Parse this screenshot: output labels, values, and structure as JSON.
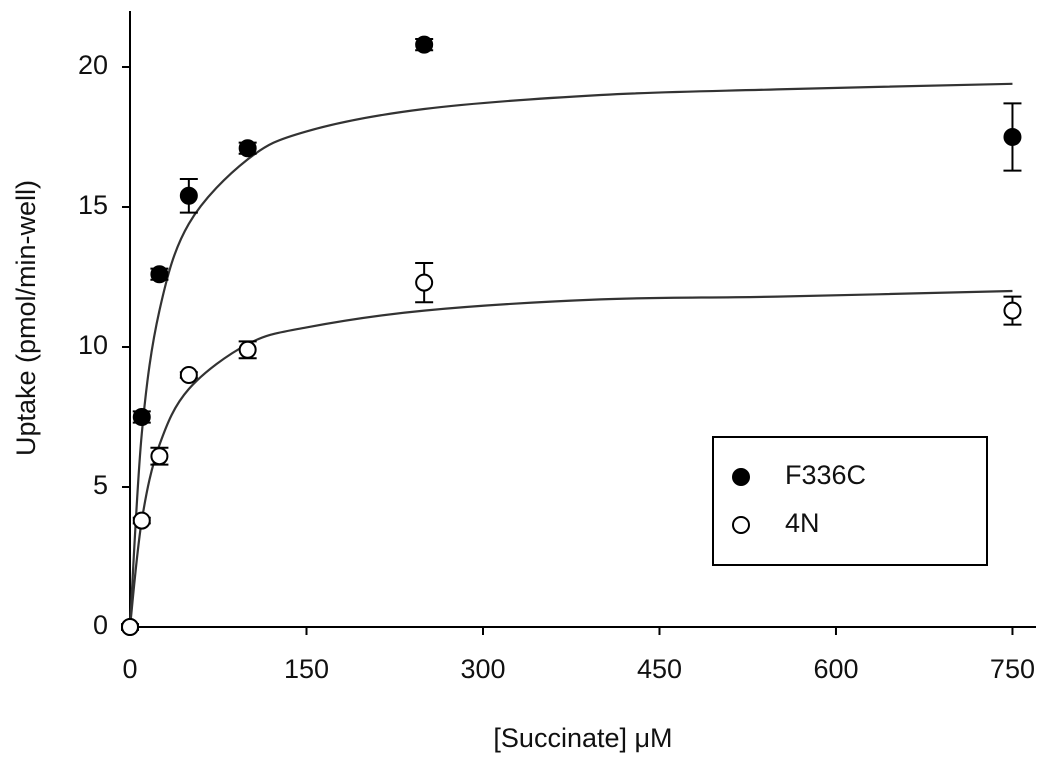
{
  "chart_data": {
    "type": "scatter",
    "x_label": "[Succinate] μM",
    "y_label": "Uptake (pmol/min-well)",
    "xlim": [
      0,
      770
    ],
    "xticks": [
      0,
      150,
      300,
      450,
      600,
      750
    ],
    "ylim": [
      0,
      22
    ],
    "yticks": [
      0,
      5,
      10,
      15,
      20
    ],
    "legend": "lower right",
    "series": [
      {
        "name": "F336C",
        "color": "#000000",
        "marker_fill": "#000000",
        "x": [
          0,
          10,
          25,
          50,
          100,
          250,
          750
        ],
        "values": [
          0,
          7.5,
          12.6,
          15.4,
          17.1,
          20.8,
          17.5
        ],
        "errors": [
          0.1,
          0.2,
          0.2,
          0.6,
          0.2,
          0.2,
          1.2
        ]
      },
      {
        "name": "4N",
        "color": "#000000",
        "marker_fill": "#ffffff",
        "x": [
          0,
          10,
          25,
          50,
          100,
          250,
          750
        ],
        "values": [
          0,
          3.8,
          6.1,
          9.0,
          9.9,
          12.3,
          11.3
        ],
        "errors": [
          0.1,
          0.1,
          0.3,
          0.1,
          0.3,
          0.7,
          0.5
        ]
      }
    ],
    "curves": [
      {
        "color": "#333333",
        "x": [
          0,
          10,
          25,
          50,
          100,
          150,
          250,
          400,
          550,
          750
        ],
        "values": [
          0,
          6.9,
          11.3,
          14.4,
          16.7,
          17.7,
          18.5,
          19.0,
          19.2,
          19.4
        ]
      },
      {
        "color": "#333333",
        "x": [
          0,
          10,
          25,
          50,
          100,
          150,
          250,
          400,
          550,
          750
        ],
        "values": [
          0,
          3.8,
          6.5,
          8.5,
          10.1,
          10.7,
          11.3,
          11.7,
          11.8,
          12.0
        ]
      }
    ]
  }
}
